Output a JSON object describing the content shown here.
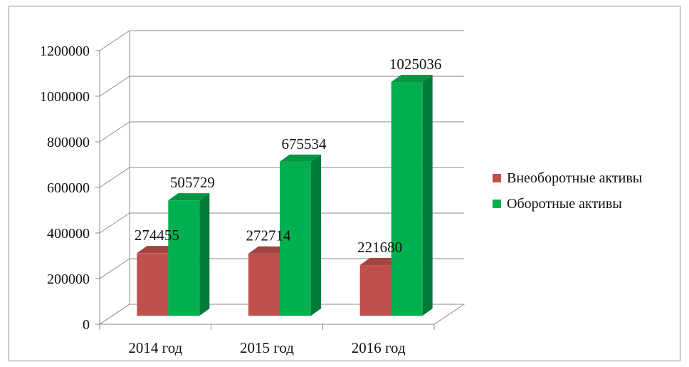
{
  "chart_data": {
    "type": "bar",
    "categories": [
      "2014 год",
      "2015 год",
      "2016 год"
    ],
    "series": [
      {
        "name": "Внеоборотные активы",
        "values": [
          274455,
          272714,
          221680
        ],
        "color": "#C0504D"
      },
      {
        "name": "Оборотные активы",
        "values": [
          505729,
          675534,
          1025036
        ],
        "color": "#00B050"
      }
    ],
    "yticks": [
      "0",
      "200000",
      "400000",
      "600000",
      "800000",
      "1000000",
      "1200000"
    ],
    "ylim": [
      0,
      1200000
    ],
    "grid": true,
    "legend_position": "right",
    "style": "3d-column"
  }
}
